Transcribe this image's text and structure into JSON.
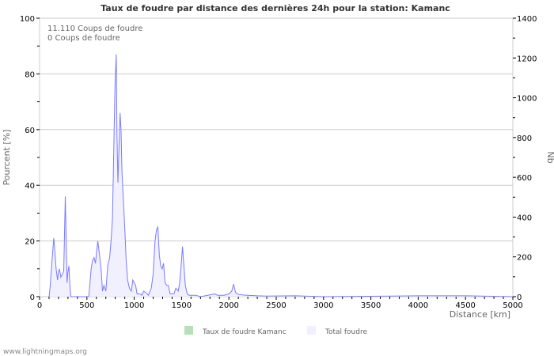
{
  "chart_data": {
    "type": "area",
    "title": "Taux de foudre par distance des dernières 24h pour la station: Kamanc",
    "xlabel": "Distance   [km]",
    "ylabel": "Pourcent   [%]",
    "y2label": "Nb",
    "xlim": [
      0,
      5000
    ],
    "ylim": [
      0,
      100
    ],
    "y2lim": [
      0,
      1400
    ],
    "xticks": [
      "0",
      "500",
      "1000",
      "1500",
      "2000",
      "2500",
      "3000",
      "3500",
      "4000",
      "4500",
      "5000"
    ],
    "yticks": [
      "0",
      "20",
      "40",
      "60",
      "80",
      "100"
    ],
    "y2ticks": [
      "0",
      "200",
      "400",
      "600",
      "800",
      "1000",
      "1200",
      "1400"
    ],
    "grid": true,
    "info_lines": [
      "11.110  Coups de foudre",
      "0  Coups de foudre"
    ],
    "legend": [
      {
        "label": "Taux de foudre Kamanc",
        "color": "#b8e0b8"
      },
      {
        "label": "Total foudre",
        "color": "#f0f0ff"
      }
    ],
    "legend_placement": "bottom",
    "series": [
      {
        "name": "Taux de foudre Kamanc",
        "values": []
      },
      {
        "name": "Total foudre",
        "color": "#7a7aff",
        "points": [
          [
            100,
            0
          ],
          [
            110,
            3
          ],
          [
            130,
            12
          ],
          [
            150,
            21
          ],
          [
            160,
            17
          ],
          [
            175,
            10
          ],
          [
            190,
            6
          ],
          [
            200,
            9
          ],
          [
            210,
            10
          ],
          [
            225,
            7
          ],
          [
            240,
            8
          ],
          [
            255,
            9
          ],
          [
            265,
            25
          ],
          [
            272,
            36
          ],
          [
            280,
            22
          ],
          [
            290,
            5
          ],
          [
            300,
            9
          ],
          [
            310,
            11
          ],
          [
            320,
            4
          ],
          [
            330,
            0
          ],
          [
            520,
            0
          ],
          [
            530,
            4
          ],
          [
            545,
            10
          ],
          [
            560,
            13
          ],
          [
            575,
            14
          ],
          [
            590,
            12
          ],
          [
            605,
            17
          ],
          [
            615,
            20
          ],
          [
            630,
            16
          ],
          [
            650,
            10
          ],
          [
            665,
            2
          ],
          [
            680,
            4
          ],
          [
            700,
            2
          ],
          [
            720,
            11
          ],
          [
            740,
            14
          ],
          [
            755,
            20
          ],
          [
            770,
            28
          ],
          [
            785,
            55
          ],
          [
            798,
            77
          ],
          [
            810,
            87
          ],
          [
            818,
            58
          ],
          [
            828,
            41
          ],
          [
            840,
            55
          ],
          [
            850,
            66
          ],
          [
            860,
            60
          ],
          [
            870,
            45
          ],
          [
            885,
            35
          ],
          [
            900,
            25
          ],
          [
            915,
            13
          ],
          [
            930,
            6
          ],
          [
            950,
            3
          ],
          [
            970,
            2
          ],
          [
            985,
            6
          ],
          [
            1000,
            5
          ],
          [
            1015,
            4
          ],
          [
            1030,
            1
          ],
          [
            1060,
            1
          ],
          [
            1080,
            0.5
          ],
          [
            1100,
            2
          ],
          [
            1120,
            1.5
          ],
          [
            1150,
            0.5
          ],
          [
            1180,
            3
          ],
          [
            1200,
            8
          ],
          [
            1220,
            20
          ],
          [
            1235,
            24
          ],
          [
            1250,
            25
          ],
          [
            1265,
            15
          ],
          [
            1280,
            11
          ],
          [
            1295,
            10
          ],
          [
            1310,
            12
          ],
          [
            1325,
            5
          ],
          [
            1345,
            4
          ],
          [
            1360,
            4
          ],
          [
            1380,
            1
          ],
          [
            1420,
            1
          ],
          [
            1440,
            3
          ],
          [
            1465,
            2
          ],
          [
            1480,
            5
          ],
          [
            1495,
            11
          ],
          [
            1510,
            18
          ],
          [
            1525,
            11
          ],
          [
            1540,
            4
          ],
          [
            1560,
            1
          ],
          [
            1580,
            0.5
          ],
          [
            1650,
            0.5
          ],
          [
            1700,
            0
          ],
          [
            1850,
            1
          ],
          [
            1880,
            0.5
          ],
          [
            1950,
            0.5
          ],
          [
            2000,
            1
          ],
          [
            2030,
            2
          ],
          [
            2050,
            4.5
          ],
          [
            2070,
            1.5
          ],
          [
            2100,
            0.8
          ],
          [
            2150,
            0.6
          ],
          [
            2200,
            0.5
          ],
          [
            2300,
            0.3
          ],
          [
            2400,
            0.2
          ],
          [
            2700,
            0.3
          ],
          [
            3000,
            0
          ],
          [
            4000,
            0.3
          ],
          [
            4500,
            0.3
          ],
          [
            5000,
            0
          ]
        ]
      }
    ]
  },
  "footer": "www.lightningmaps.org"
}
